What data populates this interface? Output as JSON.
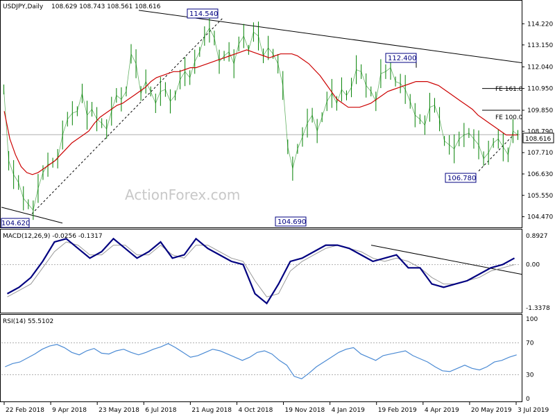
{
  "chart_data": [
    {
      "type": "candlestick",
      "title": "USDJPY,Daily",
      "ohlc_header": "108.629 108.743 108.561 108.616",
      "last_price": "108.616",
      "ylim": [
        104.0,
        115.0
      ],
      "y_ticks": [
        "114.220",
        "113.150",
        "112.040",
        "110.950",
        "109.850",
        "108.790",
        "107.710",
        "106.630",
        "105.550",
        "104.470"
      ],
      "x_ticks": [
        "22 Feb 2018",
        "9 Apr 2018",
        "23 May 2018",
        "6 Jul 2018",
        "21 Aug 2018",
        "4 Oct 2018",
        "19 Nov 2018",
        "4 Jan 2019",
        "19 Feb 2019",
        "4 Apr 2019",
        "20 May 2019",
        "3 Jul 2019"
      ],
      "series": [
        {
          "name": "Close",
          "color": "#008000",
          "values": [
            110.9,
            107.3,
            106.6,
            106.2,
            105.4,
            105.1,
            104.8,
            105.9,
            106.7,
            107.1,
            107.2,
            107.4,
            108.6,
            109.4,
            109.7,
            109.8,
            110.7,
            109.6,
            109.9,
            109.4,
            109.2,
            108.9,
            109.8,
            110.6,
            110.4,
            110.8,
            112.7,
            112.2,
            110.7,
            111.3,
            110.8,
            110.2,
            110.8,
            110.9,
            110.3,
            110.6,
            111.4,
            111.8,
            111.5,
            112.3,
            112.8,
            113.6,
            114.0,
            113.5,
            112.3,
            112.6,
            112.8,
            112.2,
            113.2,
            113.6,
            112.9,
            113.8,
            113.6,
            112.6,
            113.0,
            112.7,
            112.2,
            111.1,
            108.0,
            106.9,
            107.9,
            108.5,
            109.2,
            109.6,
            108.8,
            109.5,
            110.3,
            110.7,
            110.2,
            110.9,
            110.6,
            111.0,
            111.9,
            111.8,
            111.1,
            110.8,
            110.3,
            111.7,
            111.8,
            112.0,
            111.3,
            111.2,
            110.9,
            110.3,
            109.6,
            109.4,
            109.1,
            110.0,
            110.1,
            109.4,
            108.3,
            108.1,
            107.9,
            108.4,
            108.6,
            108.7,
            108.4,
            108.1,
            107.4,
            107.7,
            108.2,
            108.4,
            108.0,
            107.6,
            108.8,
            108.6
          ]
        },
        {
          "name": "MA",
          "color": "#cc0000",
          "values": [
            109.8,
            108.4,
            107.6,
            107.0,
            106.7,
            106.6,
            106.7,
            106.9,
            107.1,
            107.3,
            107.6,
            107.9,
            108.2,
            108.4,
            108.6,
            108.8,
            109.2,
            109.5,
            109.7,
            109.9,
            110.1,
            110.2,
            110.4,
            110.6,
            110.8,
            111.0,
            111.3,
            111.5,
            111.6,
            111.7,
            111.8,
            111.8,
            111.9,
            112.0,
            112.0,
            112.1,
            112.2,
            112.3,
            112.4,
            112.5,
            112.6,
            112.7,
            112.8,
            112.9,
            112.8,
            112.7,
            112.6,
            112.5,
            112.6,
            112.7,
            112.7,
            112.7,
            112.6,
            112.4,
            112.2,
            111.9,
            111.6,
            111.2,
            110.8,
            110.4,
            110.2,
            110.0,
            110.0,
            110.0,
            110.1,
            110.2,
            110.4,
            110.6,
            110.8,
            110.9,
            111.0,
            111.1,
            111.2,
            111.3,
            111.3,
            111.3,
            111.2,
            111.1,
            110.9,
            110.7,
            110.5,
            110.3,
            110.1,
            109.9,
            109.6,
            109.4,
            109.2,
            109.0,
            108.8,
            108.6,
            108.6,
            108.6
          ]
        }
      ],
      "annotations": [
        {
          "text": "114.540",
          "kind": "price-label"
        },
        {
          "text": "112.400",
          "kind": "price-label"
        },
        {
          "text": "104.690",
          "kind": "price-label"
        },
        {
          "text": "106.780",
          "kind": "price-label"
        },
        {
          "text": "104.620",
          "kind": "price-label"
        },
        {
          "text": "FE 161.8",
          "kind": "fib-label"
        },
        {
          "text": "FE 100.0",
          "kind": "fib-label"
        }
      ],
      "watermark": "ActionForex.com"
    },
    {
      "type": "line",
      "title": "MACD(12,26,9) -0.0256 -0.1317",
      "ylim": [
        -1.3378,
        0.8927
      ],
      "y_ticks": [
        "0.8927",
        "0.00",
        "-1.3378"
      ],
      "series": [
        {
          "name": "MACD",
          "color": "#000080",
          "values": [
            -0.9,
            -0.7,
            -0.4,
            0.1,
            0.7,
            0.8,
            0.5,
            0.2,
            0.4,
            0.8,
            0.5,
            0.2,
            0.4,
            0.7,
            0.2,
            0.3,
            0.8,
            0.5,
            0.3,
            0.1,
            0.0,
            -0.9,
            -1.2,
            -0.6,
            0.1,
            0.2,
            0.4,
            0.6,
            0.6,
            0.5,
            0.3,
            0.1,
            0.2,
            0.3,
            -0.1,
            -0.1,
            -0.6,
            -0.7,
            -0.6,
            -0.5,
            -0.3,
            -0.1,
            0.0,
            0.2
          ]
        },
        {
          "name": "Signal",
          "color": "#999999",
          "values": [
            -1.0,
            -0.8,
            -0.6,
            -0.1,
            0.4,
            0.7,
            0.6,
            0.3,
            0.3,
            0.6,
            0.6,
            0.3,
            0.3,
            0.6,
            0.3,
            0.2,
            0.6,
            0.6,
            0.4,
            0.2,
            0.1,
            -0.5,
            -1.0,
            -0.9,
            -0.2,
            0.1,
            0.3,
            0.5,
            0.6,
            0.5,
            0.4,
            0.2,
            0.1,
            0.2,
            0.1,
            -0.1,
            -0.4,
            -0.6,
            -0.6,
            -0.5,
            -0.4,
            -0.2,
            -0.1,
            0.0
          ]
        }
      ]
    },
    {
      "type": "line",
      "title": "RSI(14) 55.5102",
      "ylim": [
        0,
        100
      ],
      "y_ticks": [
        "100",
        "70",
        "30",
        "0"
      ],
      "series": [
        {
          "name": "RSI",
          "color": "#4a8ad4",
          "values": [
            40,
            44,
            46,
            51,
            56,
            62,
            66,
            68,
            64,
            58,
            55,
            60,
            63,
            57,
            56,
            60,
            62,
            58,
            55,
            58,
            62,
            65,
            69,
            64,
            58,
            52,
            54,
            58,
            62,
            60,
            56,
            52,
            48,
            52,
            58,
            60,
            56,
            48,
            42,
            28,
            25,
            32,
            40,
            46,
            52,
            58,
            62,
            64,
            56,
            52,
            48,
            54,
            56,
            58,
            60,
            54,
            50,
            46,
            40,
            35,
            34,
            38,
            42,
            38,
            36,
            40,
            46,
            48,
            52,
            55
          ]
        }
      ]
    }
  ]
}
